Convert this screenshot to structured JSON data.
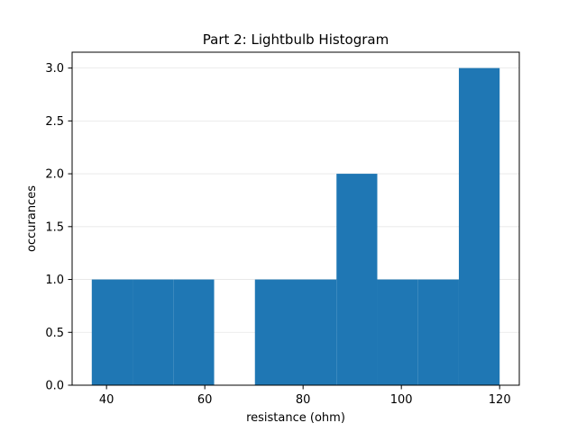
{
  "chart_data": {
    "type": "bar",
    "title": "Part 2: Lightbulb Histogram",
    "xlabel": "resistance (ohm)",
    "ylabel": "occurances",
    "xlim": [
      33,
      124
    ],
    "ylim": [
      0,
      3.15
    ],
    "grid": "y",
    "bar_color": "#1f77b4",
    "bins": [
      {
        "start": 37.0,
        "end": 45.3,
        "count": 1
      },
      {
        "start": 45.3,
        "end": 53.6,
        "count": 1
      },
      {
        "start": 53.6,
        "end": 61.9,
        "count": 1
      },
      {
        "start": 61.9,
        "end": 70.2,
        "count": 0
      },
      {
        "start": 70.2,
        "end": 78.5,
        "count": 1
      },
      {
        "start": 78.5,
        "end": 86.8,
        "count": 1
      },
      {
        "start": 86.8,
        "end": 95.1,
        "count": 2
      },
      {
        "start": 95.1,
        "end": 103.4,
        "count": 1
      },
      {
        "start": 103.4,
        "end": 111.7,
        "count": 1
      },
      {
        "start": 111.7,
        "end": 120.0,
        "count": 3
      }
    ],
    "x_ticks": [
      {
        "value": 40,
        "label": "40"
      },
      {
        "value": 60,
        "label": "60"
      },
      {
        "value": 80,
        "label": "80"
      },
      {
        "value": 100,
        "label": "100"
      },
      {
        "value": 120,
        "label": "120"
      }
    ],
    "y_ticks": [
      {
        "value": 0.0,
        "label": "0.0"
      },
      {
        "value": 0.5,
        "label": "0.5"
      },
      {
        "value": 1.0,
        "label": "1.0"
      },
      {
        "value": 1.5,
        "label": "1.5"
      },
      {
        "value": 2.0,
        "label": "2.0"
      },
      {
        "value": 2.5,
        "label": "2.5"
      },
      {
        "value": 3.0,
        "label": "3.0"
      }
    ]
  }
}
